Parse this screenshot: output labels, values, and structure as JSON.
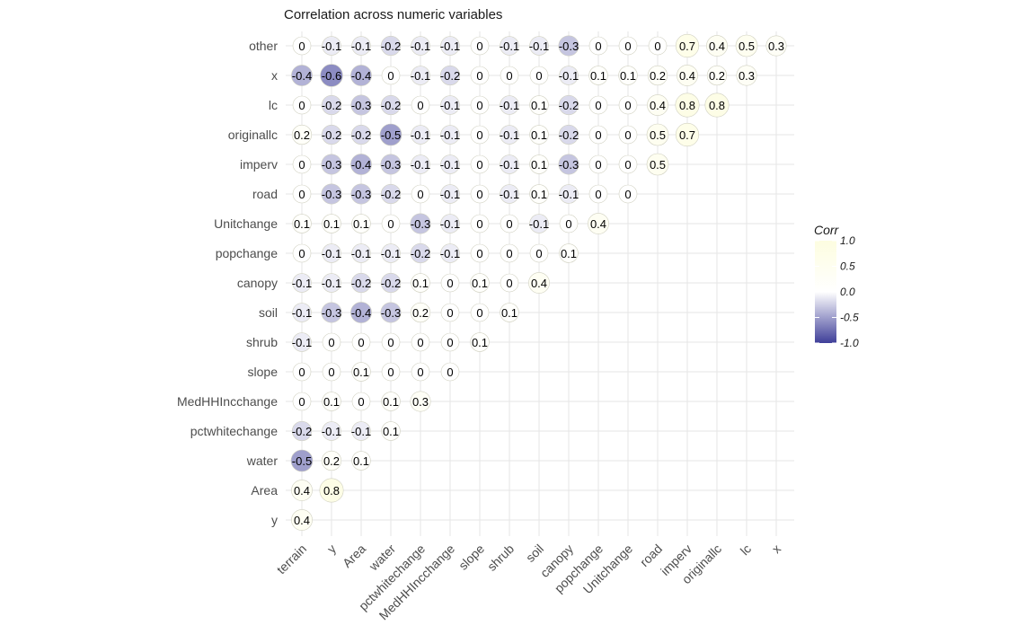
{
  "chart_data": {
    "type": "heatmap",
    "subtype": "lower-triangle correlation circle plot",
    "title": "Correlation across numeric variables",
    "x_categories": [
      "terrain",
      "y",
      "Area",
      "water",
      "pctwhitechange",
      "MedHHIncchange",
      "slope",
      "shrub",
      "soil",
      "canopy",
      "popchange",
      "Unitchange",
      "road",
      "imperv",
      "originallc",
      "lc",
      "x"
    ],
    "y_categories_top_to_bottom": [
      "other",
      "x",
      "lc",
      "originallc",
      "imperv",
      "road",
      "Unitchange",
      "popchange",
      "canopy",
      "soil",
      "shrub",
      "slope",
      "MedHHIncchange",
      "pctwhitechange",
      "water",
      "Area",
      "y"
    ],
    "rows": [
      {
        "name": "other",
        "values": [
          0,
          -0.1,
          -0.1,
          -0.2,
          -0.1,
          -0.1,
          0,
          -0.1,
          -0.1,
          -0.3,
          0,
          0,
          0,
          0.7,
          0.4,
          0.5,
          0.3
        ]
      },
      {
        "name": "x",
        "values": [
          -0.4,
          -0.6,
          -0.4,
          0,
          -0.1,
          -0.2,
          0,
          0,
          0,
          -0.1,
          0.1,
          0.1,
          0.2,
          0.4,
          0.2,
          0.3
        ]
      },
      {
        "name": "lc",
        "values": [
          0,
          -0.2,
          -0.3,
          -0.2,
          0,
          -0.1,
          0,
          -0.1,
          0.1,
          -0.2,
          0,
          0,
          0.4,
          0.8,
          0.8
        ]
      },
      {
        "name": "originallc",
        "values": [
          0.2,
          -0.2,
          -0.2,
          -0.5,
          -0.1,
          -0.1,
          0,
          -0.1,
          0.1,
          -0.2,
          0,
          0,
          0.5,
          0.7
        ]
      },
      {
        "name": "imperv",
        "values": [
          0,
          -0.3,
          -0.4,
          -0.3,
          -0.1,
          -0.1,
          0,
          -0.1,
          0.1,
          -0.3,
          0,
          0,
          0.5
        ]
      },
      {
        "name": "road",
        "values": [
          0,
          -0.3,
          -0.3,
          -0.2,
          0,
          -0.1,
          0,
          -0.1,
          0.1,
          -0.1,
          0,
          0
        ]
      },
      {
        "name": "Unitchange",
        "values": [
          0.1,
          0.1,
          0.1,
          0,
          -0.3,
          -0.1,
          0,
          0,
          -0.1,
          0,
          0.4
        ]
      },
      {
        "name": "popchange",
        "values": [
          0,
          -0.1,
          -0.1,
          -0.1,
          -0.2,
          -0.1,
          0,
          0,
          0,
          0.1
        ]
      },
      {
        "name": "canopy",
        "values": [
          -0.1,
          -0.1,
          -0.2,
          -0.2,
          0.1,
          0,
          0.1,
          0,
          0.4
        ]
      },
      {
        "name": "soil",
        "values": [
          -0.1,
          -0.3,
          -0.4,
          -0.3,
          0.2,
          0,
          0,
          0.1
        ]
      },
      {
        "name": "shrub",
        "values": [
          -0.1,
          0,
          0,
          0,
          0,
          0,
          0.1
        ]
      },
      {
        "name": "slope",
        "values": [
          0,
          0,
          0.1,
          0,
          0,
          0
        ]
      },
      {
        "name": "MedHHIncchange",
        "values": [
          0,
          0.1,
          0,
          0.1,
          0.3
        ]
      },
      {
        "name": "pctwhitechange",
        "values": [
          -0.2,
          -0.1,
          -0.1,
          0.1
        ]
      },
      {
        "name": "water",
        "values": [
          -0.5,
          0.2,
          0.1
        ]
      },
      {
        "name": "Area",
        "values": [
          0.4,
          0.8
        ]
      },
      {
        "name": "y",
        "values": [
          0.4
        ]
      }
    ],
    "legend": {
      "title": "Corr",
      "ticks": [
        "1.0",
        "0.5",
        "0.0",
        "-0.5",
        "-1.0"
      ],
      "tick_values": [
        1.0,
        0.5,
        0.0,
        -0.5,
        -1.0
      ],
      "placement": "right",
      "colors": {
        "low": "#3f3f99",
        "mid": "#ffffff",
        "high": "#fdfde0"
      }
    },
    "grid": true,
    "value_range": [
      -1,
      1
    ]
  }
}
